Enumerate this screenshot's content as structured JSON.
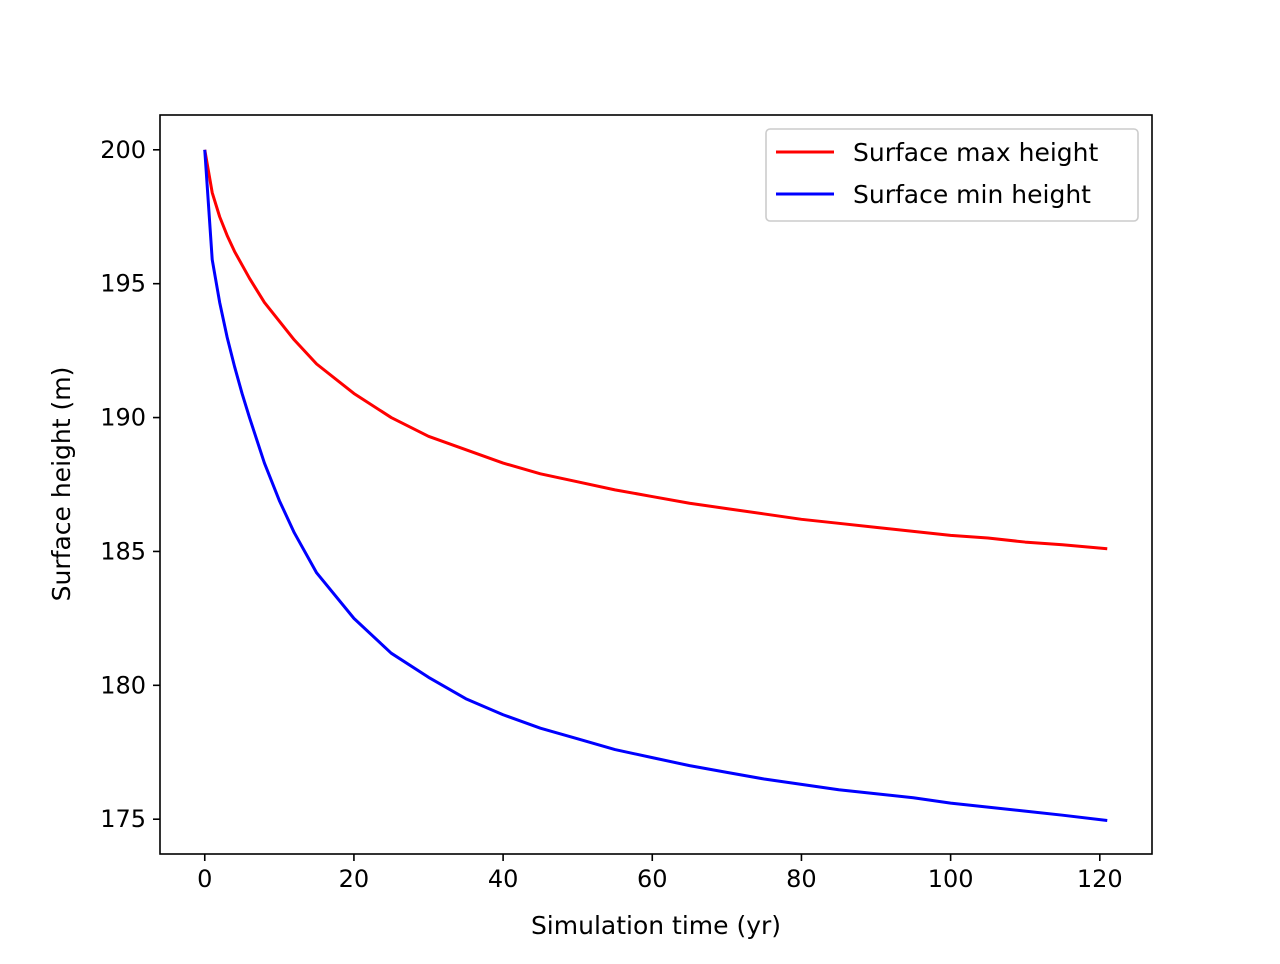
{
  "chart_data": {
    "type": "line",
    "title": "",
    "xlabel": "Simulation time (yr)",
    "ylabel": "Surface height (m)",
    "xlim": [
      -6,
      127
    ],
    "ylim": [
      173.7,
      201.3
    ],
    "xticks": [
      0,
      20,
      40,
      60,
      80,
      100,
      120
    ],
    "yticks": [
      175,
      180,
      185,
      190,
      195,
      200
    ],
    "grid": false,
    "legend": {
      "location": "upper right"
    },
    "x": [
      0,
      1,
      2,
      3,
      4,
      5,
      6,
      8,
      10,
      12,
      15,
      20,
      25,
      30,
      35,
      40,
      45,
      50,
      55,
      60,
      65,
      70,
      75,
      80,
      85,
      90,
      95,
      100,
      105,
      110,
      115,
      121
    ],
    "series": [
      {
        "name": "Surface max height",
        "color": "#ff0000",
        "values": [
          200.0,
          198.4,
          197.5,
          196.8,
          196.2,
          195.7,
          195.2,
          194.3,
          193.6,
          192.9,
          192.0,
          190.9,
          190.0,
          189.3,
          188.8,
          188.3,
          187.9,
          187.6,
          187.3,
          187.05,
          186.8,
          186.6,
          186.4,
          186.2,
          186.05,
          185.9,
          185.75,
          185.6,
          185.5,
          185.35,
          185.25,
          185.1
        ]
      },
      {
        "name": "Surface min height",
        "color": "#0000ff",
        "values": [
          200.0,
          195.9,
          194.3,
          193.0,
          191.9,
          190.9,
          190.0,
          188.3,
          186.9,
          185.7,
          184.2,
          182.5,
          181.2,
          180.3,
          179.5,
          178.9,
          178.4,
          178.0,
          177.6,
          177.3,
          177.0,
          176.75,
          176.5,
          176.3,
          176.1,
          175.95,
          175.8,
          175.6,
          175.45,
          175.3,
          175.15,
          174.95
        ]
      }
    ]
  }
}
